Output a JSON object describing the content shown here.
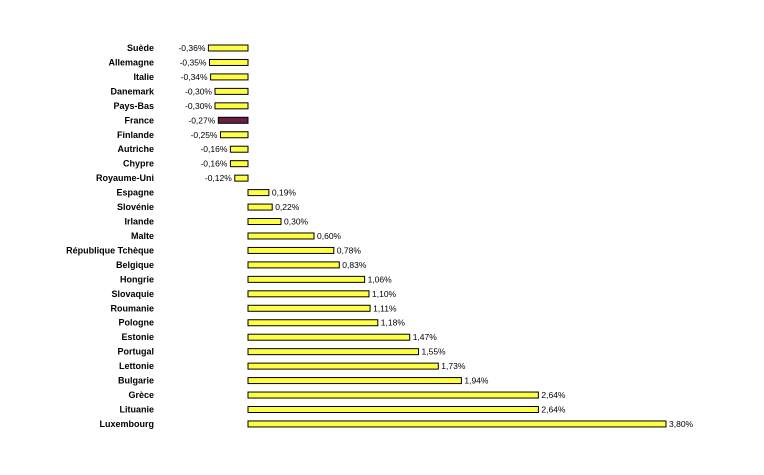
{
  "chart_data": {
    "type": "bar",
    "orientation": "horizontal",
    "categories": [
      "Suède",
      "Allemagne",
      "Italie",
      "Danemark",
      "Pays-Bas",
      "France",
      "Finlande",
      "Autriche",
      "Chypre",
      "Royaume-Uni",
      "Espagne",
      "Slovénie",
      "Irlande",
      "Malte",
      "République Tchèque",
      "Belgique",
      "Hongrie",
      "Slovaquie",
      "Roumanie",
      "Pologne",
      "Estonie",
      "Portugal",
      "Lettonie",
      "Bulgarie",
      "Grèce",
      "Lituanie",
      "Luxembourg"
    ],
    "values": [
      -0.36,
      -0.35,
      -0.34,
      -0.3,
      -0.3,
      -0.27,
      -0.25,
      -0.16,
      -0.16,
      -0.12,
      0.19,
      0.22,
      0.3,
      0.6,
      0.78,
      0.83,
      1.06,
      1.1,
      1.11,
      1.18,
      1.47,
      1.55,
      1.73,
      1.94,
      2.64,
      2.64,
      3.8
    ],
    "value_labels": [
      "-0,36%",
      "-0,35%",
      "-0,34%",
      "-0,30%",
      "-0,30%",
      "-0,27%",
      "-0,25%",
      "-0,16%",
      "-0,16%",
      "-0,12%",
      "0,19%",
      "0,22%",
      "0,30%",
      "0,60%",
      "0,78%",
      "0,83%",
      "1,06%",
      "1,10%",
      "1,11%",
      "1,18%",
      "1,47%",
      "1,55%",
      "1,73%",
      "1,94%",
      "2,64%",
      "2,64%",
      "3,80%"
    ],
    "highlight": "France",
    "xlim": [
      -0.36,
      3.8
    ],
    "grid": false,
    "legend": "none",
    "colors": {
      "bar": "#ffff44",
      "highlight": "#6b1f45",
      "outline": "#000000"
    }
  }
}
